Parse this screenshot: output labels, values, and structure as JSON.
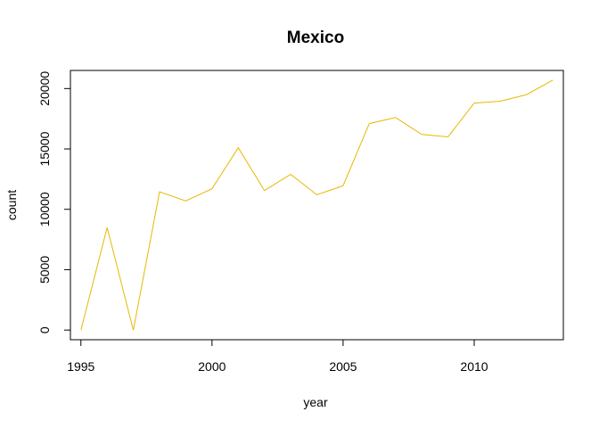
{
  "chart_data": {
    "type": "line",
    "title": "Mexico",
    "xlabel": "year",
    "ylabel": "count",
    "xlim": [
      1994.6,
      2013.4
    ],
    "ylim": [
      -800,
      21500
    ],
    "x_ticks": [
      1995,
      2000,
      2005,
      2010
    ],
    "y_ticks": [
      0,
      5000,
      10000,
      15000,
      20000
    ],
    "grid": false,
    "line_color": "#E6B800",
    "series": [
      {
        "x": [
          1995,
          1996,
          1997,
          1998,
          1999,
          2000,
          2001,
          2002,
          2003,
          2004,
          2005,
          2006,
          2007,
          2008,
          2009,
          2010,
          2011,
          2012,
          2013
        ],
        "values": [
          0,
          8500,
          0,
          11450,
          10700,
          11700,
          15100,
          11550,
          12900,
          11200,
          11950,
          17100,
          17600,
          16200,
          16000,
          18800,
          18950,
          19500,
          20700
        ]
      }
    ]
  }
}
